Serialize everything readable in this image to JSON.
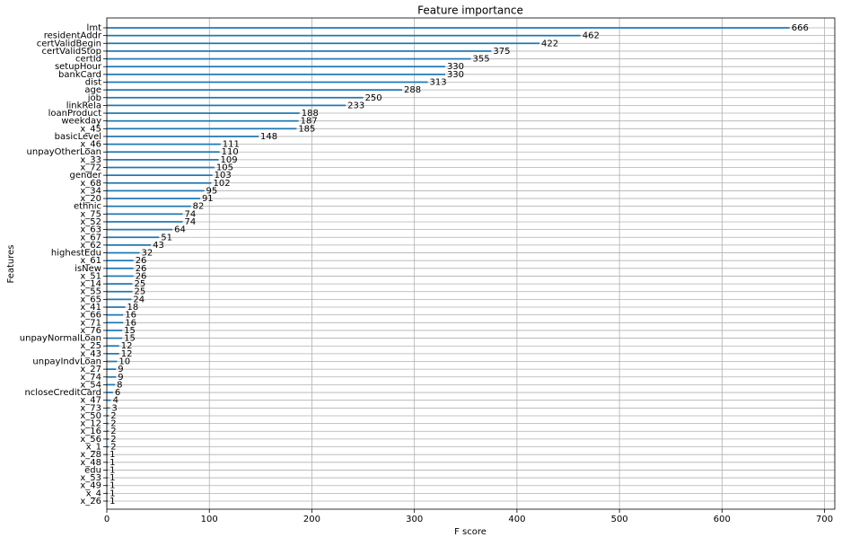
{
  "chart_data": {
    "type": "barh",
    "title": "Feature importance",
    "x_label": "F score",
    "y_label": "Features",
    "categories": [
      "lmt",
      "residentAddr",
      "certValidBegin",
      "certValidStop",
      "certId",
      "setupHour",
      "bankCard",
      "dist",
      "age",
      "job",
      "linkRela",
      "loanProduct",
      "weekday",
      "x_45",
      "basicLevel",
      "x_46",
      "unpayOtherLoan",
      "x_33",
      "x_72",
      "gender",
      "x_68",
      "x_34",
      "x_20",
      "ethnic",
      "x_75",
      "x_52",
      "x_63",
      "x_67",
      "x_62",
      "highestEdu",
      "x_61",
      "isNew",
      "x_51",
      "x_14",
      "x_55",
      "x_65",
      "x_41",
      "x_66",
      "x_71",
      "x_76",
      "unpayNormalLoan",
      "x_25",
      "x_43",
      "unpayIndvLoan",
      "x_27",
      "x_74",
      "x_54",
      "ncloseCreditCard",
      "x_47",
      "x_73",
      "x_50",
      "x_12",
      "x_16",
      "x_56",
      "x_1",
      "x_28",
      "x_48",
      "edu",
      "x_53",
      "x_49",
      "x_4",
      "x_26"
    ],
    "values": [
      666,
      462,
      422,
      375,
      355,
      330,
      330,
      313,
      288,
      250,
      233,
      188,
      187,
      185,
      148,
      111,
      110,
      109,
      105,
      103,
      102,
      95,
      91,
      82,
      74,
      74,
      64,
      51,
      43,
      32,
      26,
      26,
      26,
      25,
      25,
      24,
      18,
      16,
      16,
      15,
      15,
      12,
      12,
      10,
      9,
      9,
      8,
      6,
      4,
      3,
      2,
      2,
      2,
      2,
      2,
      1,
      1,
      1,
      1,
      1,
      1,
      1
    ],
    "color": "#1f77b4",
    "xlim": [
      0,
      710
    ],
    "xticks": [
      0,
      100,
      200,
      300,
      400,
      500,
      600,
      700
    ],
    "grid": true
  }
}
